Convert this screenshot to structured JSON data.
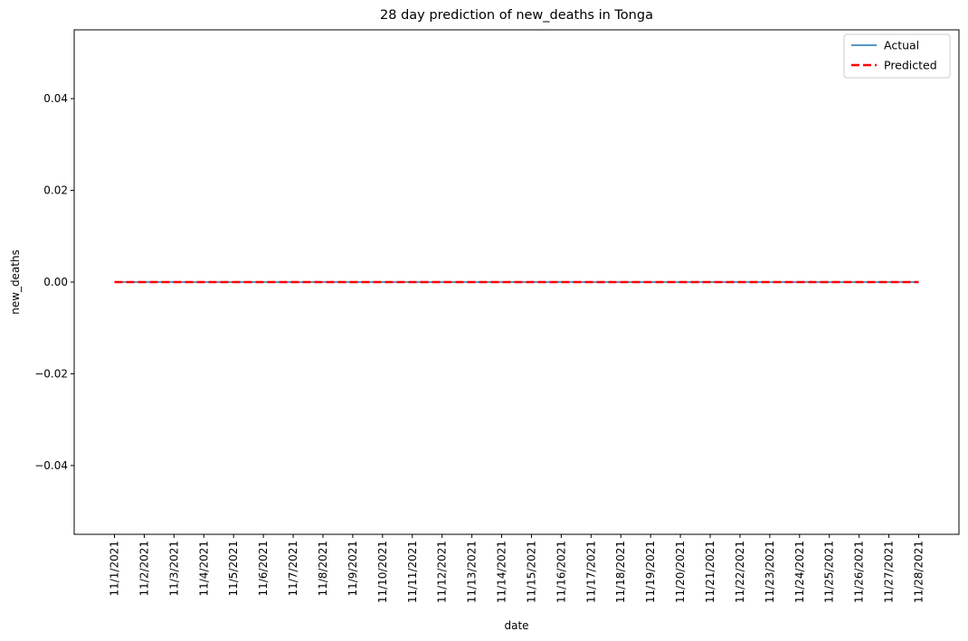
{
  "chart_data": {
    "type": "line",
    "title": "28 day prediction of new_deaths in Tonga",
    "xlabel": "date",
    "ylabel": "new_deaths",
    "x": [
      "11/1/2021",
      "11/2/2021",
      "11/3/2021",
      "11/4/2021",
      "11/5/2021",
      "11/6/2021",
      "11/7/2021",
      "11/8/2021",
      "11/9/2021",
      "11/10/2021",
      "11/11/2021",
      "11/12/2021",
      "11/13/2021",
      "11/14/2021",
      "11/15/2021",
      "11/16/2021",
      "11/17/2021",
      "11/18/2021",
      "11/19/2021",
      "11/20/2021",
      "11/21/2021",
      "11/22/2021",
      "11/23/2021",
      "11/24/2021",
      "11/25/2021",
      "11/26/2021",
      "11/27/2021",
      "11/28/2021"
    ],
    "ylim": [
      -0.055,
      0.055
    ],
    "yticks": [
      -0.04,
      -0.02,
      0.0,
      0.02,
      0.04
    ],
    "ytick_labels": [
      "−0.04",
      "−0.02",
      "0.00",
      "0.02",
      "0.04"
    ],
    "legend_position": "upper-right",
    "grid": false,
    "series": [
      {
        "name": "Actual",
        "color": "#1f77b4",
        "style": "solid",
        "values": [
          0,
          0,
          0,
          0,
          0,
          0,
          0,
          0,
          0,
          0,
          0,
          0,
          0,
          0,
          0,
          0,
          0,
          0,
          0,
          0,
          0,
          0,
          0,
          0,
          0,
          0,
          0,
          0
        ]
      },
      {
        "name": "Predicted",
        "color": "#ff0000",
        "style": "dashed",
        "values": [
          0,
          0,
          0,
          0,
          0,
          0,
          0,
          0,
          0,
          0,
          0,
          0,
          0,
          0,
          0,
          0,
          0,
          0,
          0,
          0,
          0,
          0,
          0,
          0,
          0,
          0,
          0,
          0
        ]
      }
    ]
  }
}
